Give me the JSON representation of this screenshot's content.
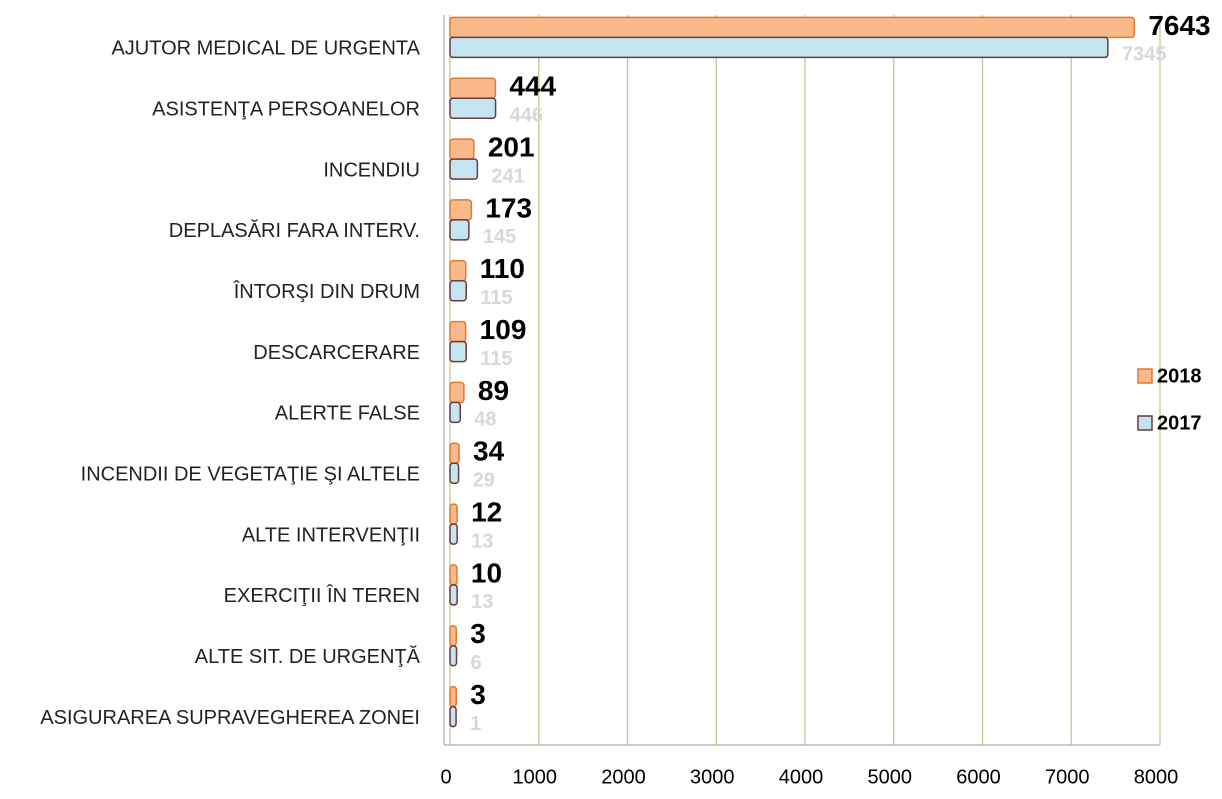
{
  "chart_data": {
    "type": "hbar",
    "categories": [
      "AJUTOR MEDICAL DE URGENTA",
      "ASISTENŢA PERSOANELOR",
      "INCENDIU",
      "DEPLASĂRI FARA INTERV.",
      "ÎNTORŞI DIN DRUM",
      "DESCARCERARE",
      "ALERTE FALSE",
      "INCENDII DE VEGETAŢIE ŞI ALTELE",
      "ALTE INTERVENŢII",
      "EXERCIŢII ÎN TEREN",
      "ALTE SIT. DE URGENŢĂ",
      "ASIGURAREA SUPRAVEGHEREA ZONEI"
    ],
    "series": [
      {
        "name": "2018",
        "color": "#f9b98a",
        "values": [
          7643,
          444,
          201,
          173,
          110,
          109,
          89,
          34,
          12,
          10,
          3,
          3
        ]
      },
      {
        "name": "2017",
        "color": "#c3e4f0",
        "values": [
          7345,
          446,
          241,
          145,
          115,
          115,
          48,
          29,
          13,
          13,
          6,
          1
        ]
      }
    ],
    "xlim": [
      0,
      8000
    ],
    "xticks": [
      0,
      1000,
      2000,
      3000,
      4000,
      5000,
      6000,
      7000,
      8000
    ],
    "grid": true,
    "legend": "right"
  }
}
